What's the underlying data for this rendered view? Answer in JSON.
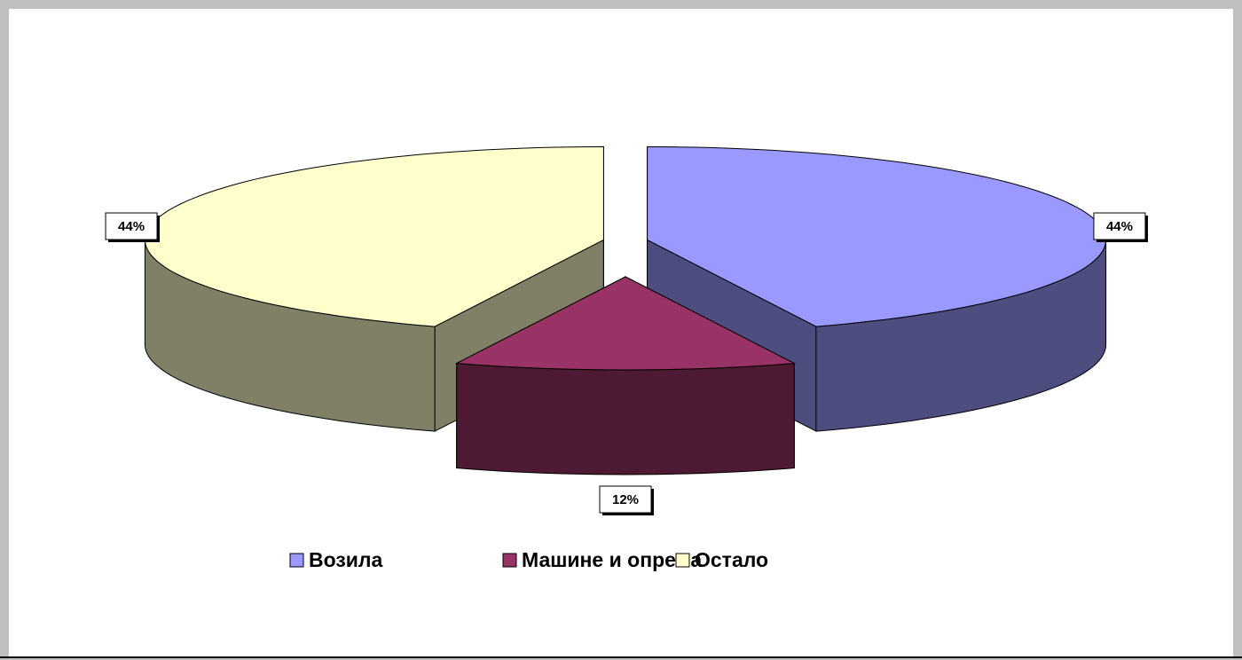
{
  "chart_data": {
    "type": "pie",
    "categories": [
      "Возила",
      "Машине и опрема",
      "Остало"
    ],
    "values": [
      44,
      12,
      44
    ],
    "value_labels": [
      "44%",
      "12%",
      "44%"
    ],
    "colors": [
      "#9999ff",
      "#993366",
      "#ffffcc"
    ],
    "side_colors": [
      "#4d4d80",
      "#4d1933",
      "#808066"
    ],
    "legend": "bottom"
  }
}
